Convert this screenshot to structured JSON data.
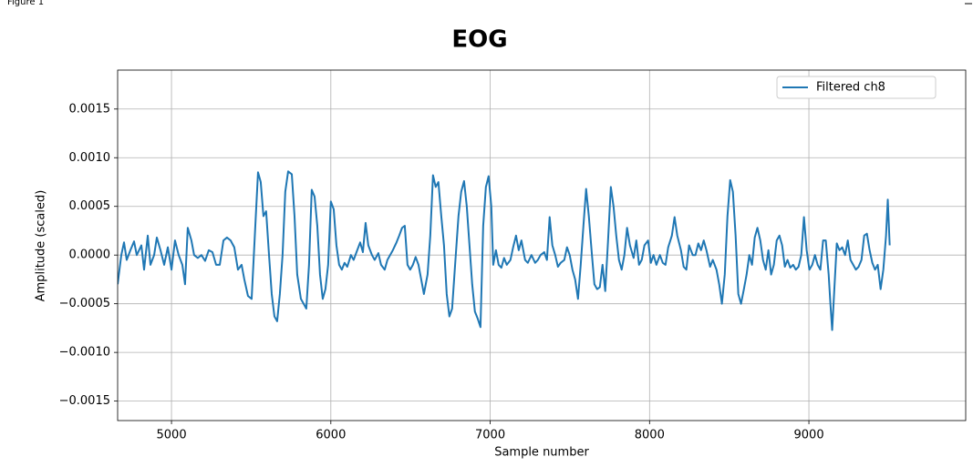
{
  "window": {
    "title": "Figure 1"
  },
  "chart_data": {
    "type": "line",
    "title": "EOG",
    "xlabel": "Sample number",
    "ylabel": "Amplitude (scaled)",
    "xlim": [
      4662,
      9984
    ],
    "ylim": [
      -0.0017,
      0.0019
    ],
    "xticks": [
      5000,
      6000,
      7000,
      8000,
      9000
    ],
    "yticks": [
      {
        "value": -0.0015,
        "label": "−0.0015"
      },
      {
        "value": -0.001,
        "label": "−0.0010"
      },
      {
        "value": -0.0005,
        "label": "−0.0005"
      },
      {
        "value": 0,
        "label": "0.0000"
      },
      0.0005,
      {
        "value": 0.001,
        "label": "0.0010"
      },
      0.0015
    ],
    "grid": true,
    "legend": "upper right",
    "x": [
      4662,
      4685,
      4702,
      4719,
      4742,
      4765,
      4782,
      4811,
      4828,
      4851,
      4868,
      4891,
      4908,
      4931,
      4954,
      4977,
      5000,
      5022,
      5045,
      5068,
      5085,
      5102,
      5125,
      5142,
      5165,
      5188,
      5211,
      5234,
      5257,
      5280,
      5303,
      5326,
      5348,
      5371,
      5394,
      5417,
      5440,
      5457,
      5480,
      5503,
      5526,
      5543,
      5560,
      5577,
      5594,
      5612,
      5629,
      5646,
      5663,
      5680,
      5697,
      5714,
      5732,
      5755,
      5772,
      5789,
      5812,
      5829,
      5846,
      5863,
      5880,
      5898,
      5915,
      5932,
      5949,
      5966,
      5983,
      6000,
      6018,
      6035,
      6052,
      6069,
      6086,
      6103,
      6126,
      6143,
      6161,
      6184,
      6201,
      6218,
      6235,
      6258,
      6275,
      6298,
      6315,
      6338,
      6355,
      6372,
      6389,
      6412,
      6429,
      6447,
      6464,
      6481,
      6498,
      6515,
      6532,
      6550,
      6567,
      6584,
      6607,
      6624,
      6641,
      6658,
      6675,
      6693,
      6710,
      6727,
      6744,
      6761,
      6784,
      6801,
      6818,
      6836,
      6853,
      6870,
      6887,
      6904,
      6921,
      6939,
      6956,
      6973,
      6990,
      7007,
      7019,
      7036,
      7053,
      7070,
      7087,
      7104,
      7127,
      7144,
      7162,
      7179,
      7196,
      7219,
      7236,
      7259,
      7282,
      7299,
      7316,
      7339,
      7356,
      7373,
      7390,
      7408,
      7425,
      7442,
      7465,
      7482,
      7499,
      7516,
      7533,
      7551,
      7568,
      7585,
      7602,
      7619,
      7636,
      7654,
      7671,
      7688,
      7705,
      7722,
      7739,
      7757,
      7774,
      7791,
      7808,
      7825,
      7842,
      7859,
      7877,
      7900,
      7917,
      7934,
      7951,
      7968,
      7991,
      8008,
      8025,
      8043,
      8065,
      8083,
      8100,
      8117,
      8140,
      8157,
      8174,
      8197,
      8214,
      8231,
      8248,
      8271,
      8288,
      8306,
      8323,
      8340,
      8357,
      8380,
      8397,
      8420,
      8437,
      8454,
      8472,
      8489,
      8506,
      8523,
      8540,
      8557,
      8574,
      8592,
      8609,
      8626,
      8643,
      8660,
      8677,
      8695,
      8712,
      8729,
      8746,
      8763,
      8780,
      8798,
      8815,
      8832,
      8849,
      8866,
      8883,
      8901,
      8918,
      8935,
      8952,
      8969,
      8986,
      9003,
      9021,
      9038,
      9055,
      9072,
      9089,
      9106,
      9124,
      9135,
      9146,
      9158,
      9175,
      9192,
      9209,
      9227,
      9244,
      9261,
      9278,
      9295,
      9312,
      9330,
      9347,
      9364,
      9381,
      9398,
      9415,
      9432,
      9450,
      9467,
      9484,
      9495,
      9507
    ],
    "series": [
      {
        "name": "Filtered ch8",
        "color": "#1f77b4",
        "values": [
          -0.0003,
          0,
          0.00013,
          -5e-05,
          5e-05,
          0.00014,
          0,
          0.0001,
          -0.00015,
          0.0002,
          -0.0001,
          0,
          0.00018,
          5e-05,
          -0.0001,
          8e-05,
          -0.00015,
          0.00015,
          0,
          -0.0001,
          -0.0003,
          0.00028,
          0.00015,
          0,
          -3e-05,
          0,
          -6e-05,
          5e-05,
          3e-05,
          -0.0001,
          -0.0001,
          0.00015,
          0.00018,
          0.00015,
          8e-05,
          -0.00015,
          -0.0001,
          -0.00025,
          -0.00042,
          -0.00045,
          0.0003,
          0.00085,
          0.00075,
          0.0004,
          0.00045,
          0,
          -0.0004,
          -0.00063,
          -0.00068,
          -0.0004,
          0,
          0.00065,
          0.00086,
          0.00083,
          0.0004,
          -0.0002,
          -0.00045,
          -0.0005,
          -0.00055,
          -0.0001,
          0.00067,
          0.0006,
          0.0003,
          -0.0002,
          -0.00045,
          -0.00035,
          -0.0001,
          0.00055,
          0.00047,
          0.0001,
          -0.0001,
          -0.00015,
          -8e-05,
          -0.00012,
          0,
          -5e-05,
          3e-05,
          0.00013,
          3e-05,
          0.00033,
          0.0001,
          0,
          -5e-05,
          2e-05,
          -0.0001,
          -0.00015,
          -5e-05,
          0,
          5e-05,
          0.00013,
          0.0002,
          0.00028,
          0.0003,
          -0.0001,
          -0.00015,
          -0.0001,
          -2e-05,
          -0.0001,
          -0.00025,
          -0.0004,
          -0.0002,
          0.0002,
          0.00082,
          0.0007,
          0.00075,
          0.0004,
          0.0001,
          -0.0004,
          -0.00063,
          -0.00055,
          0,
          0.0004,
          0.00065,
          0.00076,
          0.0005,
          0.0001,
          -0.0003,
          -0.00058,
          -0.00065,
          -0.00074,
          0.0003,
          0.0007,
          0.00081,
          0.0005,
          -0.0001,
          5e-05,
          -0.0001,
          -0.00013,
          -3e-05,
          -0.0001,
          -5e-05,
          8e-05,
          0.0002,
          5e-05,
          0.00015,
          -5e-05,
          -8e-05,
          0,
          -8e-05,
          -5e-05,
          0,
          3e-05,
          -5e-05,
          0.00039,
          0.0001,
          0,
          -0.00012,
          -8e-05,
          -5e-05,
          8e-05,
          0,
          -0.00015,
          -0.00025,
          -0.00045,
          -0.0001,
          0.0003,
          0.00068,
          0.0004,
          5e-05,
          -0.0003,
          -0.00035,
          -0.00033,
          -0.0001,
          -0.00037,
          0.00013,
          0.0007,
          0.0005,
          0.0002,
          -5e-05,
          -0.00015,
          0,
          0.00028,
          0.0001,
          -3e-05,
          0.00015,
          -0.0001,
          -5e-05,
          0.0001,
          0.00015,
          -8e-05,
          0,
          -0.0001,
          0,
          -8e-05,
          -0.0001,
          8e-05,
          0.0002,
          0.00039,
          0.0002,
          5e-05,
          -0.00012,
          -0.00015,
          0.0001,
          0,
          0,
          0.00012,
          5e-05,
          0.00015,
          5e-05,
          -0.00012,
          -5e-05,
          -0.00015,
          -0.0003,
          -0.0005,
          -0.0002,
          0.0004,
          0.00077,
          0.00065,
          0.0002,
          -0.0004,
          -0.0005,
          -0.00035,
          -0.0002,
          0,
          -0.0001,
          0.00018,
          0.00028,
          0.00015,
          -5e-05,
          -0.00015,
          5e-05,
          -0.0002,
          -0.0001,
          0.00015,
          0.0002,
          0.0001,
          -0.00012,
          -5e-05,
          -0.00013,
          -0.0001,
          -0.00015,
          -0.00012,
          0,
          0.00039,
          5e-05,
          -0.00015,
          -0.0001,
          0,
          -0.0001,
          -0.00015,
          0.00015,
          0.00015,
          -0.0002,
          -0.0005,
          -0.00077,
          -0.0004,
          0.00012,
          5e-05,
          8e-05,
          0,
          0.00015,
          -5e-05,
          -0.0001,
          -0.00015,
          -0.00012,
          -5e-05,
          0.0002,
          0.00022,
          5e-05,
          -8e-05,
          -0.00015,
          -0.0001,
          -0.00035,
          -0.00015,
          0.0002,
          0.00057,
          0.0001
        ]
      }
    ]
  }
}
